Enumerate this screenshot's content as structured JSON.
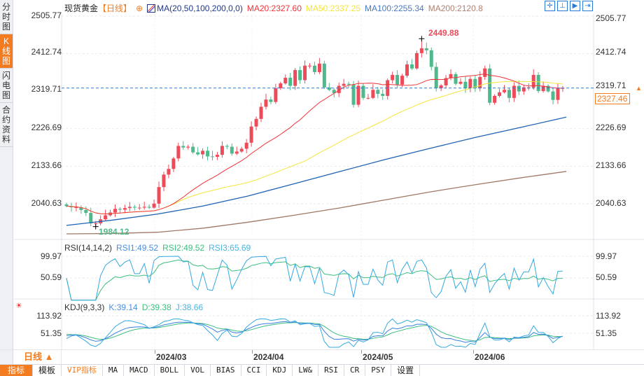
{
  "sidebar": {
    "tabs": [
      {
        "label": "分时图",
        "active": false
      },
      {
        "label": "K线图",
        "active": true
      },
      {
        "label": "闪电图",
        "active": false
      },
      {
        "label": "合约资料",
        "active": false
      }
    ]
  },
  "header": {
    "instrument": "现货黄金",
    "period": "【日线】",
    "ma_label": "MA(20,50,100,200,0,0)",
    "ma20": "MA20:2327.60",
    "ma50": "MA50:2337.25",
    "ma100": "MA100:2255.34",
    "ma200": "MA200:2120.8",
    "tool_icons": [
      "crosshair-icon",
      "range-icon",
      "play-icon",
      "jump-end-icon"
    ]
  },
  "price_axis": {
    "labels": [
      "2505.77",
      "2412.74",
      "2319.71",
      "2226.69",
      "2133.66",
      "2040.63"
    ],
    "current_price": "2327.46",
    "max_label": "2449.88",
    "min_label": "1984.12"
  },
  "rsi": {
    "label": "RSI(14,14,2)",
    "rsi1": "RSI1:49.52",
    "rsi2": "RSI2:49.52",
    "rsi3": "RSI3:65.69",
    "axis": [
      "99.97",
      "50.59"
    ]
  },
  "kdj": {
    "label": "KDJ(9,3,3)",
    "k": "K:39.14",
    "d": "D:39.38",
    "j": "J:38.66",
    "axis": [
      "113.92",
      "51.35"
    ]
  },
  "date_axis": {
    "period_button": "日线 ▲",
    "dates": [
      "2024/03",
      "2024/04",
      "2024/05",
      "2024/06"
    ]
  },
  "toolbar": [
    "指标",
    "模板",
    "VIP指标",
    "MA",
    "MACD",
    "BOLL",
    "VOL",
    "BIAS",
    "CCI",
    "KDJ",
    "LW&",
    "RSI",
    "CR",
    "PSY",
    "设置"
  ],
  "colors": {
    "up": "#ee4b5a",
    "down": "#4eb98a",
    "ma20": "#f0333a",
    "ma50": "#f5e53a",
    "ma100": "#1f63b3",
    "ma200": "#a07868",
    "accent": "#f47c20"
  },
  "chart_data": {
    "type": "candlestick",
    "ylim": [
      1984.12,
      2505.77
    ],
    "closes": [
      2035,
      2032,
      2032,
      2025,
      2018,
      1992,
      1992,
      2002,
      2012,
      2019,
      2028,
      2026,
      2030,
      2033,
      2031,
      2031,
      2033,
      2031,
      2041,
      2082,
      2113,
      2127,
      2153,
      2184,
      2180,
      2182,
      2168,
      2163,
      2172,
      2158,
      2157,
      2162,
      2184,
      2182,
      2165,
      2170,
      2177,
      2192,
      2232,
      2251,
      2281,
      2299,
      2293,
      2327,
      2339,
      2353,
      2333,
      2372,
      2347,
      2383,
      2383,
      2367,
      2388,
      2329,
      2323,
      2315,
      2333,
      2338,
      2336,
      2286,
      2333,
      2303,
      2303,
      2323,
      2313,
      2308,
      2347,
      2360,
      2336,
      2358,
      2386,
      2376,
      2414,
      2426,
      2421,
      2380,
      2327,
      2334,
      2352,
      2362,
      2338,
      2343,
      2327,
      2350,
      2327,
      2355,
      2376,
      2291,
      2308,
      2317,
      2323,
      2303,
      2333,
      2319,
      2329,
      2329,
      2360,
      2320,
      2333,
      2319,
      2298,
      2327,
      2327.46
    ],
    "ma100": [
      1987,
      2000,
      2015,
      2035,
      2060,
      2090,
      2120,
      2150,
      2178,
      2205,
      2230,
      2255.34
    ],
    "ma200": [
      1966,
      1967,
      1970,
      1980,
      1995,
      2012,
      2030,
      2050,
      2070,
      2088,
      2105,
      2120.8
    ],
    "date_ticks": [
      {
        "label": "2024/03",
        "index": 19
      },
      {
        "label": "2024/04",
        "index": 39
      },
      {
        "label": "2024/05",
        "index": 62
      },
      {
        "label": "2024/06",
        "index": 85
      }
    ]
  }
}
